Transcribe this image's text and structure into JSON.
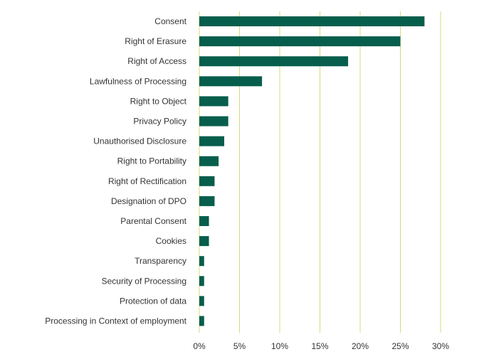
{
  "chart_data": {
    "type": "bar",
    "orientation": "horizontal",
    "title": "",
    "xlabel": "",
    "ylabel": "",
    "categories": [
      "Consent",
      "Right of Erasure",
      "Right of Access",
      "Lawfulness of Processing",
      "Right to Object",
      "Privacy Policy",
      "Unauthorised Disclosure",
      "Right to Portability",
      "Right of Rectification",
      "Designation of DPO",
      "Parental Consent",
      "Cookies",
      "Transparency",
      "Security of Processing",
      "Protection of data",
      "Processing in Context of employment"
    ],
    "values": [
      28.0,
      25.0,
      18.5,
      7.8,
      3.6,
      3.6,
      3.1,
      2.4,
      1.9,
      1.9,
      1.2,
      1.2,
      0.6,
      0.6,
      0.6,
      0.6
    ],
    "xlim": [
      0,
      30
    ],
    "xticks": [
      0,
      5,
      10,
      15,
      20,
      25,
      30
    ],
    "xtick_labels": [
      "0%",
      "5%",
      "10%",
      "15%",
      "20%",
      "25%",
      "30%"
    ],
    "grid": true,
    "bar_color": "#075e4c",
    "grid_color": "#d4dc7a"
  }
}
